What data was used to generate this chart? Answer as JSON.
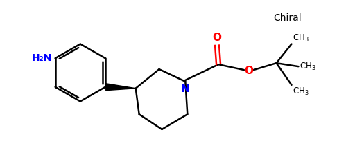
{
  "background_color": "#ffffff",
  "bond_color": "#000000",
  "nitrogen_color": "#0000ff",
  "oxygen_color": "#ff0000",
  "amine_color": "#0000ff",
  "chiral_label": "Chiral",
  "amine_label": "H₂N",
  "nitrogen_label": "N",
  "oxygen_label": "O",
  "figsize": [
    5.12,
    2.14
  ],
  "dpi": 100
}
